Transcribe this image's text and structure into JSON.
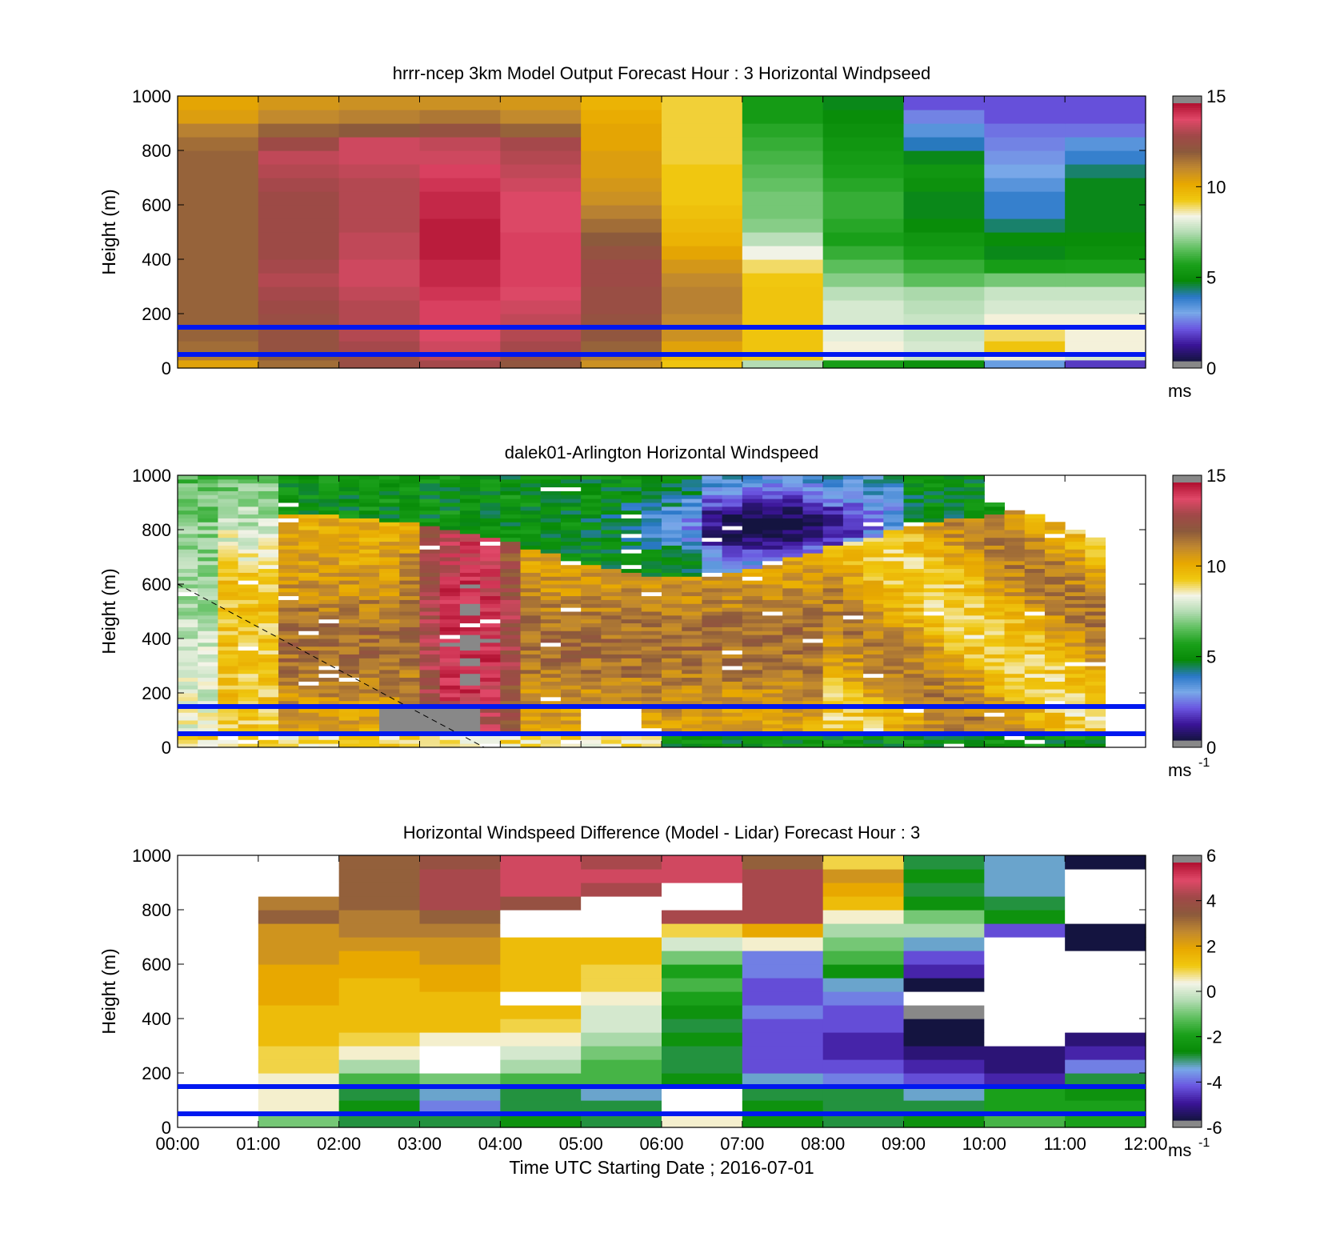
{
  "colors": {
    "speed_scale": [
      "#141440",
      "#3a1496",
      "#6a55e0",
      "#78a8e8",
      "#2a78c8",
      "#078a07",
      "#1aa01a",
      "#60c060",
      "#b4dcb4",
      "#f4f4e8",
      "#f0c810",
      "#e8a800",
      "#c08830",
      "#8c5a3c",
      "#a04848",
      "#e04868",
      "#b01030"
    ],
    "diff_scale": [
      "#141440",
      "#3a1496",
      "#6a55e0",
      "#78a8e8",
      "#078a07",
      "#1aa01a",
      "#60c060",
      "#b4dcb4",
      "#f4f4e8",
      "#f0c810",
      "#e8a800",
      "#c08830",
      "#8c5a3c",
      "#a04848",
      "#e04868",
      "#b01030"
    ],
    "out_of_range": "#888888",
    "guide_lines": "#0018f0"
  },
  "chart_data": [
    {
      "type": "heatmap",
      "title": "hrrr-ncep 3km Model Output   Forecast Hour : 3 Horizontal Windpseed",
      "ylabel": "Height (m)",
      "ylim": [
        0,
        1000
      ],
      "yticks": [
        "0",
        "200",
        "400",
        "600",
        "800",
        "1000"
      ],
      "xlim": [
        0,
        12
      ],
      "colorbar": {
        "min": 0,
        "max": 15,
        "ticks": [
          "0",
          "5",
          "10",
          "15"
        ],
        "unit": "ms"
      },
      "reference_lines_m": [
        150,
        50
      ],
      "heights_m": [
        0,
        30,
        60,
        100,
        150,
        200,
        250,
        300,
        350,
        400,
        450,
        500,
        550,
        600,
        650,
        700,
        750,
        800,
        850,
        900,
        950,
        1000
      ],
      "hours": [
        0,
        1,
        2,
        3,
        4,
        5,
        6,
        7,
        8,
        9,
        10,
        11,
        12
      ],
      "values_ms": [
        [
          10.5,
          11.8,
          12.8,
          13.2,
          12.4,
          11,
          9.5,
          7.5,
          5.5,
          5,
          3,
          1.5
        ],
        [
          11.5,
          12.2,
          12.8,
          13.6,
          12.8,
          11.5,
          10,
          9.5,
          8.5,
          7.8,
          8.5,
          8
        ],
        [
          11.8,
          12.6,
          13.2,
          13.8,
          13.2,
          12,
          10.5,
          9.5,
          8.5,
          8,
          9.5,
          8.5
        ],
        [
          12,
          12.6,
          13.4,
          14,
          13.4,
          12.4,
          11,
          9.5,
          8.2,
          7.8,
          9,
          8.5
        ],
        [
          12,
          12.8,
          13.4,
          14.2,
          13.6,
          12.6,
          11.2,
          9.5,
          8,
          7.8,
          8.5,
          8.5
        ],
        [
          12,
          13,
          13.4,
          14.2,
          13.8,
          12.8,
          11.4,
          9.5,
          8,
          7.6,
          8,
          8
        ],
        [
          12,
          13.2,
          13.6,
          14.4,
          14,
          12.8,
          11.4,
          9.5,
          7.6,
          7.4,
          7.8,
          7.8
        ],
        [
          12,
          13.4,
          13.8,
          14.6,
          14.2,
          13,
          11.2,
          9.4,
          7,
          6.5,
          6.8,
          6.8
        ],
        [
          12,
          13.2,
          13.8,
          14.6,
          14.2,
          13,
          10.8,
          9,
          6.5,
          6,
          5.5,
          5.6
        ],
        [
          12,
          13,
          13.6,
          14.8,
          14.2,
          12.6,
          10.4,
          8.4,
          6,
          5.5,
          4.6,
          5
        ],
        [
          12,
          13,
          13.6,
          14.8,
          14.2,
          12.2,
          10,
          7.6,
          5.6,
          5.2,
          4.8,
          4.8
        ],
        [
          12,
          13,
          13.4,
          14.8,
          14,
          11.8,
          9.8,
          7,
          5.8,
          4.8,
          4.2,
          4.6
        ],
        [
          12,
          13,
          13.4,
          14.6,
          14,
          11.4,
          9.6,
          6.8,
          6,
          4.6,
          3.6,
          4.6
        ],
        [
          12,
          13,
          13.4,
          14.6,
          14,
          11,
          9.4,
          6.8,
          6,
          4.6,
          3.6,
          4.6
        ],
        [
          12,
          13.2,
          13.4,
          14.4,
          13.8,
          10.8,
          9.4,
          6.6,
          5.8,
          5,
          3.2,
          4.6
        ],
        [
          12,
          13.4,
          13.6,
          14.2,
          13.6,
          10.6,
          9.4,
          6.4,
          5.6,
          5.2,
          2.8,
          4.2
        ],
        [
          12,
          13.6,
          13.8,
          13.8,
          13.4,
          10.6,
          9.2,
          6.2,
          5.4,
          4.6,
          2.6,
          3.6
        ],
        [
          11.8,
          13,
          13.8,
          13.6,
          13.2,
          10.4,
          9.2,
          6,
          5.2,
          3.8,
          2.4,
          3.2
        ],
        [
          11.4,
          12,
          12.2,
          12.6,
          12,
          10.4,
          9.2,
          5.8,
          5,
          3.2,
          2.2,
          2.2
        ],
        [
          10.6,
          11.2,
          11.4,
          11.6,
          11.2,
          10.2,
          9.2,
          5.4,
          4.8,
          2.4,
          1.8,
          1.8
        ],
        [
          10.4,
          10.8,
          11,
          11,
          10.8,
          10,
          9.2,
          5.4,
          4.6,
          1.8,
          1.8,
          1.8
        ]
      ]
    },
    {
      "type": "heatmap",
      "title": "dalek01-Arlington  Horizontal Windspeed",
      "ylabel": "Height (m)",
      "ylim": [
        0,
        1000
      ],
      "yticks": [
        "0",
        "200",
        "400",
        "600",
        "800",
        "1000"
      ],
      "xlim": [
        0,
        12
      ],
      "colorbar": {
        "min": 0,
        "max": 15,
        "ticks": [
          "0",
          "5",
          "10",
          "15"
        ],
        "unit": "ms",
        "unit_exponent": "-1"
      },
      "reference_lines_m": [
        150,
        50
      ],
      "dashed_line": {
        "x": [
          0,
          3.8
        ],
        "y": [
          600,
          0
        ]
      }
    },
    {
      "type": "heatmap",
      "title": "Horizontal Windspeed Difference (Model - Lidar) Forecast Hour : 3",
      "ylabel": "Height (m)",
      "xlabel": "Time UTC  Starting Date ; 2016-07-01",
      "ylim": [
        0,
        1000
      ],
      "yticks": [
        "0",
        "200",
        "400",
        "600",
        "800",
        "1000"
      ],
      "xlim": [
        0,
        12
      ],
      "xticks": [
        "00:00",
        "01:00",
        "02:00",
        "03:00",
        "04:00",
        "05:00",
        "06:00",
        "07:00",
        "08:00",
        "09:00",
        "10:00",
        "11:00",
        "12:00"
      ],
      "colorbar": {
        "min": -6,
        "max": 6,
        "ticks": [
          "-6",
          "-4",
          "-2",
          "0",
          "2",
          "4",
          "6"
        ],
        "unit": "ms",
        "unit_exponent": "-1"
      },
      "reference_lines_m": [
        150,
        50
      ],
      "heights_m": [
        0,
        50,
        100,
        150,
        200,
        250,
        300,
        350,
        400,
        450,
        500,
        550,
        600,
        650,
        700,
        750,
        800,
        850,
        900,
        950,
        1000
      ],
      "hours": [
        0,
        1,
        2,
        3,
        4,
        5,
        6,
        7,
        8,
        9,
        10,
        11,
        12
      ],
      "values_ms": [
        [
          null,
          -1,
          -3,
          -3,
          -2.5,
          -3,
          0.5,
          -2.5,
          -3,
          -2.5,
          -1.5,
          -2
        ],
        [
          null,
          0.5,
          -2.5,
          -4,
          -3,
          -3,
          null,
          -2.5,
          -3,
          -3,
          -2,
          -2
        ],
        [
          null,
          0.5,
          -3,
          -3.5,
          -3,
          -3.5,
          null,
          -3,
          -3,
          -3.5,
          -2,
          -2.5
        ],
        [
          null,
          0.5,
          -1.5,
          -1,
          -1.5,
          -1.5,
          -2.5,
          -3.5,
          -4,
          -4.5,
          -5,
          -3
        ],
        [
          null,
          1,
          -0.5,
          null,
          -0.5,
          -1.5,
          -3,
          -4.5,
          -4.5,
          -5,
          -5.5,
          -4
        ],
        [
          null,
          1,
          0.5,
          null,
          0,
          -1,
          -3,
          -4.5,
          -5,
          -5.5,
          -5.5,
          -5
        ],
        [
          null,
          1.5,
          1,
          0.5,
          0.5,
          -0.5,
          -2.5,
          -4.5,
          -5,
          -6,
          null,
          -5.5
        ],
        [
          null,
          1.5,
          1.5,
          1.5,
          1,
          0,
          -3,
          -4.5,
          -4.5,
          -6,
          null,
          null
        ],
        [
          null,
          1.5,
          1.5,
          1.5,
          1.5,
          0,
          -2.5,
          -4,
          -4.5,
          -6.5,
          null,
          null
        ],
        [
          null,
          2,
          1.5,
          1.5,
          null,
          0.5,
          -2,
          -4.5,
          -4,
          null,
          null,
          null
        ],
        [
          null,
          2,
          1.5,
          2,
          1.5,
          1,
          -1.5,
          -4.5,
          -3.5,
          -6,
          null,
          null
        ],
        [
          null,
          2,
          2,
          2,
          1.5,
          1,
          -2,
          -4,
          -2.5,
          -5,
          null,
          null
        ],
        [
          null,
          2.5,
          2,
          2.5,
          1.5,
          1.5,
          -1,
          -4,
          -1.5,
          -4.5,
          null,
          null
        ],
        [
          null,
          2.5,
          2.5,
          2.5,
          1.5,
          1.5,
          0,
          0.5,
          -1,
          -3.5,
          null,
          -6
        ],
        [
          null,
          2.5,
          3,
          3,
          null,
          null,
          1,
          2,
          -0.5,
          -0.5,
          -4.5,
          -6
        ],
        [
          null,
          3.5,
          3,
          3.5,
          null,
          null,
          4.5,
          4.5,
          0.5,
          -1,
          -2.5,
          null
        ],
        [
          null,
          3,
          3.5,
          4.5,
          4,
          null,
          null,
          4.5,
          1.5,
          -2.5,
          -3,
          null
        ],
        [
          null,
          null,
          3.5,
          4.5,
          5,
          4.5,
          null,
          4.5,
          2,
          -3,
          -3.5,
          null
        ],
        [
          null,
          null,
          3.5,
          4.5,
          5,
          5,
          5,
          4.5,
          2.5,
          -2.5,
          -3.5,
          null
        ],
        [
          null,
          null,
          3.5,
          4,
          5,
          4.5,
          5,
          3.5,
          1,
          -3,
          -3.5,
          -6
        ]
      ]
    }
  ]
}
